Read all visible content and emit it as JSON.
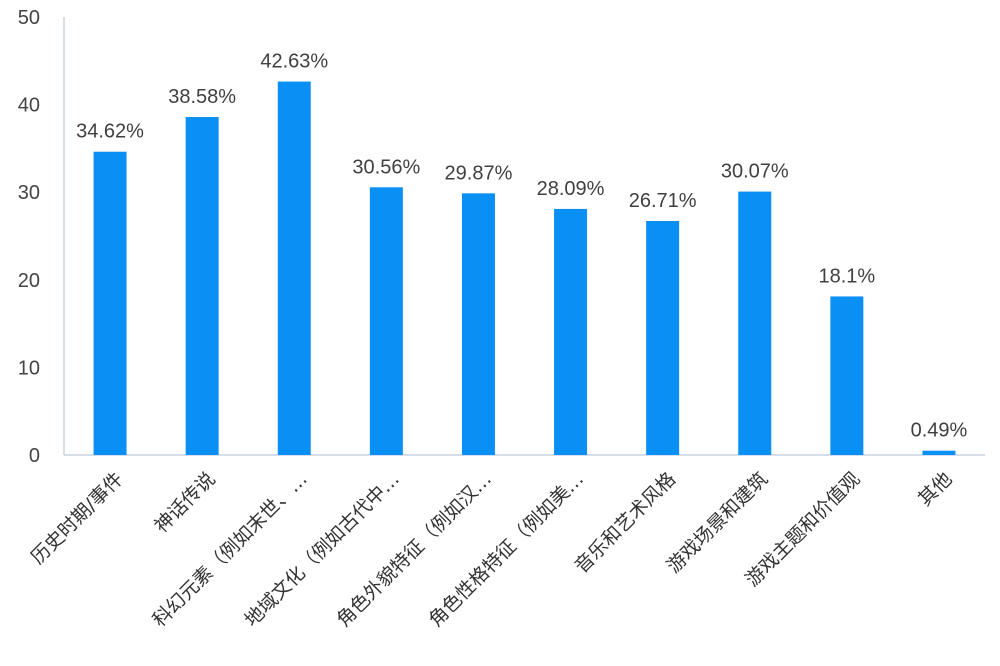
{
  "chart_data": {
    "type": "bar",
    "categories": [
      "历史时期/事件",
      "神话传说",
      "科幻元素（例如末世、…",
      "地域文化（例如古代中…",
      "角色外貌特征（例如汉…",
      "角色性格特征（例如美…",
      "音乐和艺术风格",
      "游戏场景和建筑",
      "游戏主题和价值观",
      "其他"
    ],
    "values": [
      34.62,
      38.58,
      42.63,
      30.56,
      29.87,
      28.09,
      26.71,
      30.07,
      18.1,
      0.49
    ],
    "data_labels": [
      "34.62%",
      "38.58%",
      "42.63%",
      "30.56%",
      "29.87%",
      "28.09%",
      "26.71%",
      "30.07%",
      "18.1%",
      "0.49%"
    ],
    "yticks": [
      "0",
      "10",
      "20",
      "30",
      "40",
      "50"
    ],
    "ylim": [
      0,
      50
    ],
    "grid": false,
    "legend": "none",
    "bar_color": "#0a8ff5",
    "axis_color": "#c9d3e6"
  }
}
